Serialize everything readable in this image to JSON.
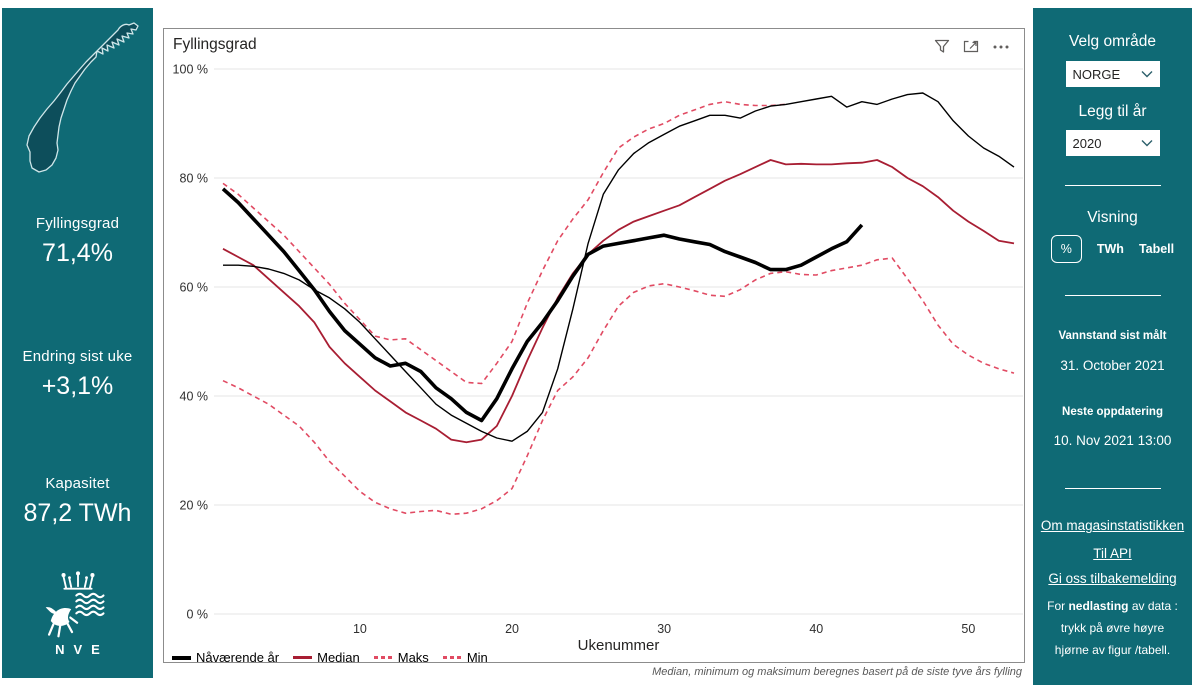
{
  "colors": {
    "panel_teal": "#0f6a75",
    "map_fill": "#0d4e5b",
    "current_year_line": "#000000",
    "median_line": "#a81e33",
    "minmax_dashed": "#e14b63",
    "gridline": "#e6e6e6",
    "icon_gray": "#605e5c"
  },
  "left_panel": {
    "map_icon": "norway-map",
    "stats": [
      {
        "label": "Fyllingsgrad",
        "value": "71,4%"
      },
      {
        "label": "Endring sist uke",
        "value": "+3,1%"
      },
      {
        "label": "Kapasitet",
        "value": "87,2 TWh"
      }
    ],
    "logo_text": "NVE"
  },
  "right_panel": {
    "area_heading": "Velg område",
    "area_value": "NORGE",
    "year_heading": "Legg til år",
    "year_value": "2020",
    "visning_heading": "Visning",
    "visning_options": [
      {
        "label": "%",
        "selected": true
      },
      {
        "label": "TWh",
        "selected": false
      },
      {
        "label": "Tabell",
        "selected": false
      }
    ],
    "vannstand_label": "Vannstand sist målt",
    "vannstand_value": "31. October 2021",
    "oppdatering_label": "Neste oppdatering",
    "oppdatering_value": "10. Nov 2021 13:00",
    "links": [
      "Om magasinstatistikken",
      "Til API",
      "Gi oss tilbakemelding"
    ],
    "note": {
      "prefix": "For ",
      "bold": "nedlasting",
      "suffix": " av data :",
      "line2": "trykk på øvre høyre",
      "line3": "hjørne av figur /tabell."
    }
  },
  "chart": {
    "title": "Fyllingsgrad",
    "footnote": "Median, minimum og maksimum beregnes basert på de siste tyve års fylling"
  },
  "chart_data": {
    "type": "line",
    "title": "Fyllingsgrad",
    "xlabel": "Ukenummer",
    "ylabel": "%",
    "xlim": [
      1,
      53
    ],
    "ylim": [
      0,
      100
    ],
    "grid": "horizontal",
    "legend_position": "bottom-left",
    "x_ticks": [
      10,
      20,
      30,
      40,
      50
    ],
    "y_ticks": [
      {
        "value": 0,
        "label": "0 %"
      },
      {
        "value": 20,
        "label": "20 %"
      },
      {
        "value": 40,
        "label": "40 %"
      },
      {
        "value": 60,
        "label": "60 %"
      },
      {
        "value": 80,
        "label": "80 %"
      },
      {
        "value": 100,
        "label": "100 %"
      }
    ],
    "x_unit": "uke (1-53)",
    "series": [
      {
        "name": "Nåværende år",
        "color": "#000000",
        "width": 3.6,
        "dash": null,
        "z": 5,
        "in_legend": true,
        "values": [
          78,
          75.5,
          72.5,
          69.5,
          66.5,
          63,
          59.5,
          55.5,
          52,
          49.5,
          47,
          45.5,
          46,
          44.5,
          41.5,
          39.5,
          37,
          35.5,
          39.5,
          45,
          50,
          53.5,
          57.5,
          62,
          66,
          67.5,
          68,
          68.5,
          69,
          69.5,
          68.8,
          68.3,
          67.8,
          66.5,
          65.5,
          64.5,
          63.2,
          63.2,
          64,
          65.5,
          67,
          68.3,
          71.4,
          null,
          null,
          null,
          null,
          null,
          null,
          null,
          null,
          null,
          null
        ]
      },
      {
        "name": "Median",
        "color": "#a81e33",
        "width": 1.8,
        "dash": null,
        "z": 3,
        "in_legend": true,
        "values": [
          67,
          65.5,
          64,
          61.5,
          59,
          56.5,
          53.5,
          49,
          46,
          43.5,
          41,
          39,
          37,
          35.5,
          34,
          32,
          31.5,
          32,
          34.5,
          40,
          46.5,
          52.5,
          58,
          62.5,
          66,
          68.5,
          70.5,
          72,
          73,
          74,
          75,
          76.5,
          78,
          79.5,
          80.7,
          82,
          83.3,
          82.5,
          82.6,
          82.5,
          82.5,
          82.7,
          82.8,
          83.3,
          82,
          80,
          78.5,
          76.5,
          74,
          72,
          70.3,
          68.5,
          68
        ]
      },
      {
        "name": "Maks",
        "color": "#e14b63",
        "width": 1.6,
        "dash": "5 4",
        "z": 2,
        "in_legend": true,
        "values": [
          79,
          77,
          74.5,
          72,
          69.5,
          66.5,
          63.5,
          60.5,
          57,
          54,
          51,
          50.3,
          50.5,
          48.5,
          46.5,
          44.5,
          42.5,
          42.3,
          46,
          50,
          57,
          63,
          68.5,
          72.5,
          76,
          81,
          85.5,
          87.5,
          89,
          90,
          91.5,
          92.5,
          93.5,
          94,
          93.5,
          93.3,
          93.3,
          93.5,
          null,
          null,
          null,
          null,
          null,
          null,
          null,
          null,
          null,
          null,
          null,
          null,
          null,
          null,
          null
        ]
      },
      {
        "name": "Min",
        "color": "#e14b63",
        "width": 1.6,
        "dash": "5 4",
        "z": 1,
        "in_legend": true,
        "values": [
          42.8,
          41.5,
          40,
          38.5,
          36.5,
          34.5,
          31.5,
          28,
          25.3,
          22.5,
          20.5,
          19.3,
          18.5,
          18.8,
          19,
          18.3,
          18.5,
          19.3,
          20.8,
          23,
          29,
          35.5,
          41,
          43.5,
          47,
          52,
          56.5,
          59,
          60.2,
          60.6,
          60,
          59.3,
          58.5,
          58.3,
          59.5,
          61.3,
          62.5,
          62.8,
          62.3,
          62.2,
          63,
          63.5,
          64,
          65,
          65.3,
          61.5,
          57.5,
          53,
          49.5,
          47.5,
          46,
          45,
          44.2
        ]
      },
      {
        "name": "2020",
        "color": "#000000",
        "width": 1.4,
        "dash": null,
        "z": 4,
        "in_legend": false,
        "values": [
          64,
          64,
          63.8,
          63.3,
          62.5,
          61.3,
          59.5,
          58,
          56,
          53.5,
          50.5,
          47.5,
          44.5,
          41.5,
          38.5,
          36.5,
          35,
          33.5,
          32.3,
          31.7,
          33.5,
          37,
          45,
          56,
          68,
          77,
          81.5,
          84.5,
          86.5,
          88,
          89.5,
          90.5,
          91.5,
          91.5,
          91,
          92.3,
          93.2,
          93.5,
          94,
          94.5,
          95,
          93,
          94,
          93.5,
          94.5,
          95.3,
          95.6,
          94,
          90.5,
          87.7,
          85.5,
          84,
          82
        ]
      }
    ]
  }
}
